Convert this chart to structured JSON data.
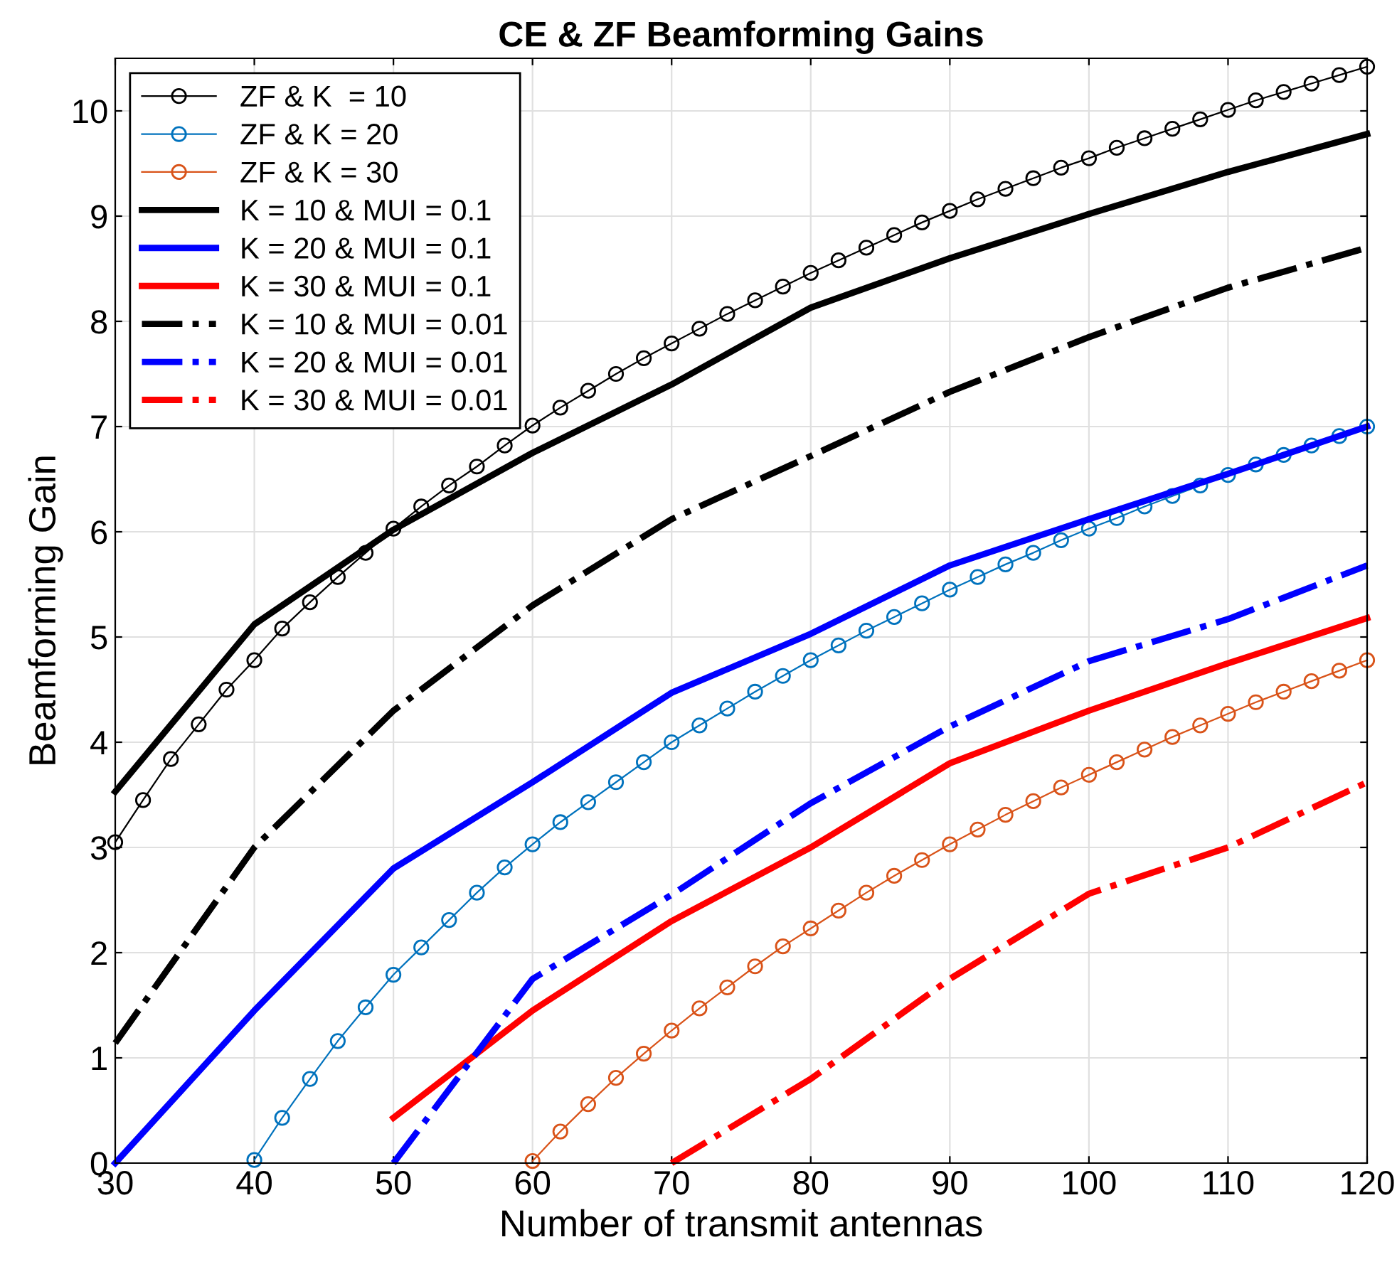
{
  "chart_data": {
    "type": "line",
    "title": "CE & ZF Beamforming Gains",
    "xlabel": "Number of transmit antennas",
    "ylabel": "Beamforming Gain",
    "xlim": [
      30,
      120
    ],
    "xticks": [
      30,
      40,
      50,
      60,
      70,
      80,
      90,
      100,
      110,
      120
    ],
    "ylim": [
      0,
      10.5
    ],
    "yticks": [
      0,
      1,
      2,
      3,
      4,
      5,
      6,
      7,
      8,
      9,
      10
    ],
    "grid": true,
    "legend": "top left",
    "series": [
      {
        "name": "ZF & K  = 10",
        "color": "#000000",
        "marker": "circle",
        "line_style": "solid",
        "x": [
          30,
          32,
          34,
          36,
          38,
          40,
          42,
          44,
          46,
          48,
          50,
          52,
          54,
          56,
          58,
          60,
          62,
          64,
          66,
          68,
          70,
          72,
          74,
          76,
          78,
          80,
          82,
          84,
          86,
          88,
          90,
          92,
          94,
          96,
          98,
          100,
          102,
          104,
          106,
          108,
          110,
          112,
          114,
          116,
          118,
          120
        ],
        "values": [
          3.05,
          3.45,
          3.84,
          4.17,
          4.5,
          4.78,
          5.08,
          5.33,
          5.57,
          5.8,
          6.03,
          6.24,
          6.44,
          6.62,
          6.82,
          7.01,
          7.18,
          7.34,
          7.5,
          7.65,
          7.79,
          7.93,
          8.07,
          8.2,
          8.33,
          8.46,
          8.58,
          8.7,
          8.82,
          8.94,
          9.05,
          9.16,
          9.26,
          9.36,
          9.46,
          9.55,
          9.65,
          9.74,
          9.83,
          9.92,
          10.01,
          10.1,
          10.18,
          10.26,
          10.34,
          10.42
        ]
      },
      {
        "name": "ZF & K = 20",
        "color": "#0072bd",
        "marker": "circle",
        "line_style": "solid",
        "x": [
          40,
          42,
          44,
          46,
          48,
          50,
          52,
          54,
          56,
          58,
          60,
          62,
          64,
          66,
          68,
          70,
          72,
          74,
          76,
          78,
          80,
          82,
          84,
          86,
          88,
          90,
          92,
          94,
          96,
          98,
          100,
          102,
          104,
          106,
          108,
          110,
          112,
          114,
          116,
          118,
          120
        ],
        "values": [
          0.03,
          0.43,
          0.8,
          1.16,
          1.48,
          1.79,
          2.05,
          2.31,
          2.57,
          2.81,
          3.03,
          3.24,
          3.43,
          3.62,
          3.81,
          4.0,
          4.16,
          4.32,
          4.48,
          4.63,
          4.78,
          4.92,
          5.06,
          5.19,
          5.32,
          5.45,
          5.57,
          5.69,
          5.8,
          5.92,
          6.03,
          6.13,
          6.24,
          6.34,
          6.44,
          6.54,
          6.64,
          6.73,
          6.82,
          6.91,
          7.0
        ]
      },
      {
        "name": "ZF & K = 30",
        "color": "#d95319",
        "marker": "circle",
        "line_style": "solid",
        "x": [
          60,
          62,
          64,
          66,
          68,
          70,
          72,
          74,
          76,
          78,
          80,
          82,
          84,
          86,
          88,
          90,
          92,
          94,
          96,
          98,
          100,
          102,
          104,
          106,
          108,
          110,
          112,
          114,
          116,
          118,
          120
        ],
        "values": [
          0.02,
          0.3,
          0.56,
          0.81,
          1.04,
          1.26,
          1.47,
          1.67,
          1.87,
          2.06,
          2.23,
          2.4,
          2.57,
          2.73,
          2.88,
          3.03,
          3.17,
          3.31,
          3.44,
          3.57,
          3.69,
          3.81,
          3.93,
          4.05,
          4.16,
          4.27,
          4.38,
          4.48,
          4.58,
          4.68,
          4.78
        ]
      },
      {
        "name": "K = 10 & MUI = 0.1",
        "color": "#000000",
        "marker": "none",
        "line_style": "solid",
        "x": [
          30,
          40,
          50,
          60,
          70,
          80,
          90,
          100,
          110,
          120
        ],
        "values": [
          3.53,
          5.12,
          6.02,
          6.75,
          7.4,
          8.13,
          8.6,
          9.02,
          9.42,
          9.78
        ]
      },
      {
        "name": "K = 20 & MUI = 0.1",
        "color": "#0000ff",
        "marker": "none",
        "line_style": "solid",
        "x": [
          30,
          40,
          50,
          60,
          70,
          80,
          90,
          100,
          110,
          120
        ],
        "values": [
          0,
          1.45,
          2.8,
          3.62,
          4.47,
          5.03,
          5.68,
          6.12,
          6.55,
          7.0
        ]
      },
      {
        "name": "K = 30 & MUI = 0.1",
        "color": "#ff0000",
        "marker": "none",
        "line_style": "solid",
        "x": [
          50,
          60,
          70,
          80,
          90,
          100,
          110,
          120
        ],
        "values": [
          0.43,
          1.45,
          2.3,
          3.0,
          3.8,
          4.3,
          4.75,
          5.18
        ]
      },
      {
        "name": "K = 10 & MUI = 0.01",
        "color": "#000000",
        "marker": "none",
        "line_style": "dashdot",
        "x": [
          30,
          40,
          50,
          60,
          70,
          80,
          90,
          100,
          110,
          120
        ],
        "values": [
          1.14,
          3.0,
          4.3,
          5.3,
          6.12,
          6.72,
          7.33,
          7.85,
          8.32,
          8.7
        ]
      },
      {
        "name": "K = 20 & MUI = 0.01",
        "color": "#0000ff",
        "marker": "none",
        "line_style": "dashdot",
        "x": [
          50,
          60,
          70,
          80,
          90,
          100,
          110,
          120
        ],
        "values": [
          0,
          1.75,
          2.55,
          3.42,
          4.15,
          4.77,
          5.17,
          5.68
        ]
      },
      {
        "name": "K = 30 & MUI = 0.01",
        "color": "#ff0000",
        "marker": "none",
        "line_style": "dashdot",
        "x": [
          70,
          80,
          90,
          100,
          110,
          120
        ],
        "values": [
          0,
          0.8,
          1.75,
          2.56,
          3.0,
          3.62
        ]
      }
    ]
  }
}
